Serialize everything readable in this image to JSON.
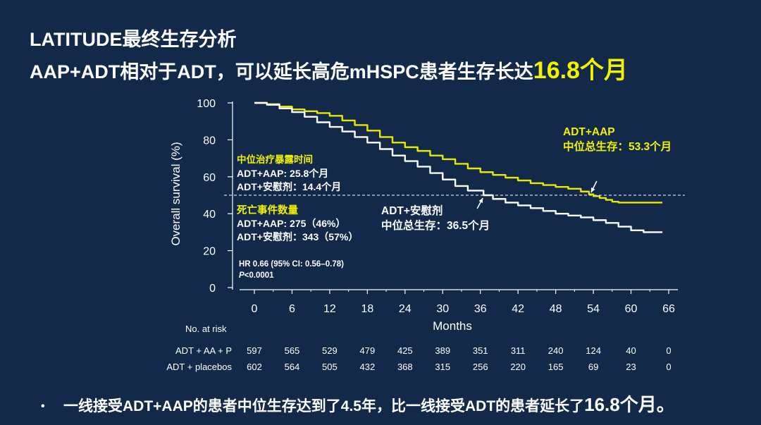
{
  "slide": {
    "title_line1": "LATITUDE最终生存分析",
    "title_line2_prefix": "AAP+ADT相对于ADT，可以延长高危mHSPC患者生存长达",
    "title_line2_highlight": "16.8个月",
    "bullet_prefix": "一线接受ADT+AAP的患者中位生存达到了4.5年，比一线接受ADT的患者延长了",
    "bullet_highlight": "16.8个月。",
    "bullet_symbol": "•"
  },
  "colors": {
    "background": "#12294a",
    "adt_aap": "#e8e800",
    "adt_placebo": "#ffffff",
    "highlight_text": "#f2f200"
  },
  "chart_data": {
    "type": "line",
    "title": "",
    "xlabel": "Months",
    "ylabel": "Overall survival (%)",
    "xlim": [
      0,
      66
    ],
    "ylim": [
      0,
      100
    ],
    "xticks": [
      0,
      6,
      12,
      18,
      24,
      30,
      36,
      42,
      48,
      54,
      60,
      66
    ],
    "yticks": [
      0,
      20,
      40,
      60,
      80,
      100
    ],
    "reference_line_y": 50,
    "series": [
      {
        "name": "ADT+AAP",
        "color": "#e8e800",
        "x": [
          0,
          2,
          4,
          6,
          8,
          10,
          12,
          14,
          16,
          18,
          20,
          22,
          24,
          26,
          28,
          30,
          32,
          34,
          36,
          38,
          40,
          42,
          44,
          46,
          48,
          50,
          52,
          53.3,
          54,
          55,
          56,
          57,
          58,
          60,
          62,
          64,
          65
        ],
        "y": [
          100,
          99.3,
          98,
          96.5,
          95.5,
          94.5,
          93,
          90.5,
          88,
          85,
          81.5,
          78.5,
          76,
          74,
          71.5,
          69.5,
          67,
          64.5,
          62.5,
          61,
          59.5,
          58,
          56.5,
          55.5,
          54.5,
          53.5,
          52,
          50.5,
          49.5,
          48.5,
          47.5,
          46.5,
          46,
          46,
          46,
          46,
          46
        ]
      },
      {
        "name": "ADT+安慰剂",
        "color": "#ffffff",
        "x": [
          0,
          2,
          4,
          6,
          8,
          10,
          12,
          14,
          16,
          18,
          20,
          22,
          24,
          26,
          28,
          30,
          32,
          34,
          36.5,
          38,
          40,
          42,
          44,
          46,
          48,
          50,
          52,
          54,
          56,
          58,
          60,
          62,
          64,
          65
        ],
        "y": [
          100,
          99,
          97,
          95,
          92.5,
          89.5,
          87,
          84.5,
          81.5,
          78.5,
          75,
          71.5,
          68.5,
          65.5,
          62,
          58.5,
          55,
          52.5,
          50,
          48,
          46,
          44.5,
          43,
          41.5,
          40,
          39,
          38,
          36.5,
          35,
          33,
          31,
          30,
          30,
          30
        ]
      }
    ],
    "annotations": {
      "exposure_title": "中位治疗暴露时间",
      "exposure_aap": "ADT+AAP: 25.8个月",
      "exposure_placebo": "ADT+安慰剂：14.4个月",
      "deaths_title": "死亡事件数量",
      "deaths_aap": "ADT+AAP: 275（46%）",
      "deaths_placebo": "ADT+安慰剂：343（57%）",
      "hr": "HR 0.66 (95% CI: 0.56–0.78)",
      "p_italic": "P",
      "p_rest": "<0.0001",
      "aap_label": "ADT+AAP",
      "aap_median": "中位总生存：53.3个月",
      "placebo_label": "ADT+安慰剂",
      "placebo_median": "中位总生存：36.5个月",
      "aap_median_months": 53.3,
      "placebo_median_months": 36.5
    },
    "risk_table": {
      "header": "No. at risk",
      "rows": [
        {
          "label": "ADT + AA + P",
          "values": [
            597,
            565,
            529,
            479,
            425,
            389,
            351,
            311,
            240,
            124,
            40,
            0
          ]
        },
        {
          "label": "ADT + placebos",
          "values": [
            602,
            564,
            505,
            432,
            368,
            315,
            256,
            220,
            165,
            69,
            23,
            0
          ]
        }
      ]
    }
  }
}
